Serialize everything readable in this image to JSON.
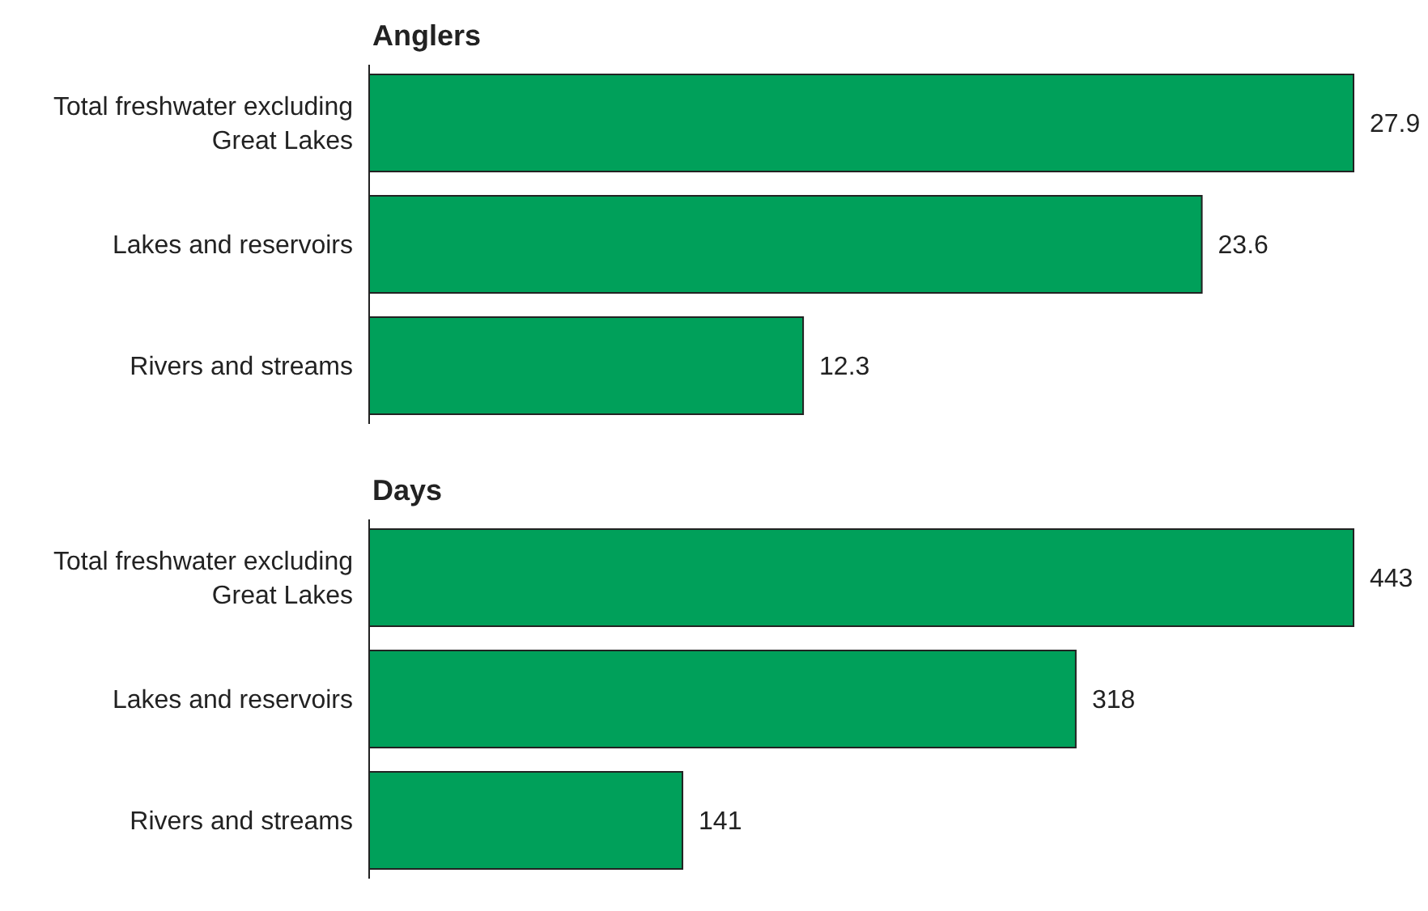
{
  "chart_data": [
    {
      "type": "bar",
      "orientation": "horizontal",
      "title": "Anglers",
      "categories": [
        "Total freshwater excluding Great Lakes",
        "Lakes and reservoirs",
        "Rivers and streams"
      ],
      "values": [
        27.9,
        23.6,
        12.3
      ],
      "color": "#00a05a",
      "data_labels": true,
      "tick_labels": false
    },
    {
      "type": "bar",
      "orientation": "horizontal",
      "title": "Days",
      "categories": [
        "Total freshwater excluding Great Lakes",
        "Lakes and reservoirs",
        "Rivers and streams"
      ],
      "values": [
        443,
        318,
        141
      ],
      "color": "#00a05a",
      "data_labels": true,
      "tick_labels": false
    }
  ]
}
